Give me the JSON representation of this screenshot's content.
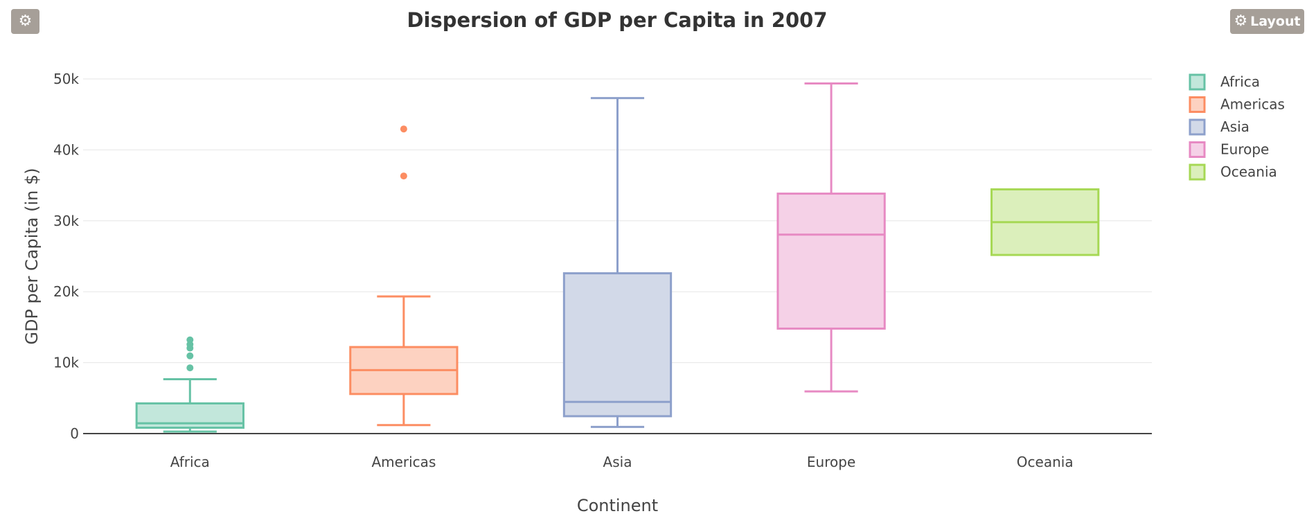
{
  "toolbar": {
    "settings_icon": "gear-icon",
    "layout_icon": "gear-icon",
    "layout_label": "Layout",
    "button_color": "#a69f98"
  },
  "chart_data": {
    "type": "box",
    "title": "Dispersion of GDP per Capita in 2007",
    "xlabel": "Continent",
    "ylabel": "GDP per Capita (in $)",
    "ylim": [
      0,
      50000
    ],
    "yticks": [
      0,
      10000,
      20000,
      30000,
      40000,
      50000
    ],
    "ytick_labels": [
      "0",
      "10k",
      "20k",
      "30k",
      "40k",
      "50k"
    ],
    "grid": true,
    "legend_position": "top-right",
    "categories": [
      "Africa",
      "Americas",
      "Asia",
      "Europe",
      "Oceania"
    ],
    "series": [
      {
        "name": "Africa",
        "color": "#66c2a5",
        "fill": "#c2e7db",
        "min": 278,
        "q1": 823,
        "median": 1452,
        "q3": 4256,
        "max": 7670,
        "outliers": [
          9270,
          10956,
          12057,
          12570,
          13206
        ]
      },
      {
        "name": "Americas",
        "color": "#fc8d62",
        "fill": "#fdd2c1",
        "min": 1202,
        "q1": 5580,
        "median": 8950,
        "q3": 12200,
        "max": 19330,
        "outliers": [
          36320,
          42950
        ]
      },
      {
        "name": "Asia",
        "color": "#8da0cb",
        "fill": "#d2d9e8",
        "min": 944,
        "q1": 2450,
        "median": 4470,
        "q3": 22600,
        "max": 47300,
        "outliers": []
      },
      {
        "name": "Europe",
        "color": "#e78ac3",
        "fill": "#f5d1e7",
        "min": 5940,
        "q1": 14800,
        "median": 28050,
        "q3": 33830,
        "max": 49360,
        "outliers": []
      },
      {
        "name": "Oceania",
        "color": "#a6d854",
        "fill": "#dbefbb",
        "min": 25185,
        "q1": 25185,
        "median": 29810,
        "q3": 34435,
        "max": 34435,
        "outliers": []
      }
    ]
  }
}
